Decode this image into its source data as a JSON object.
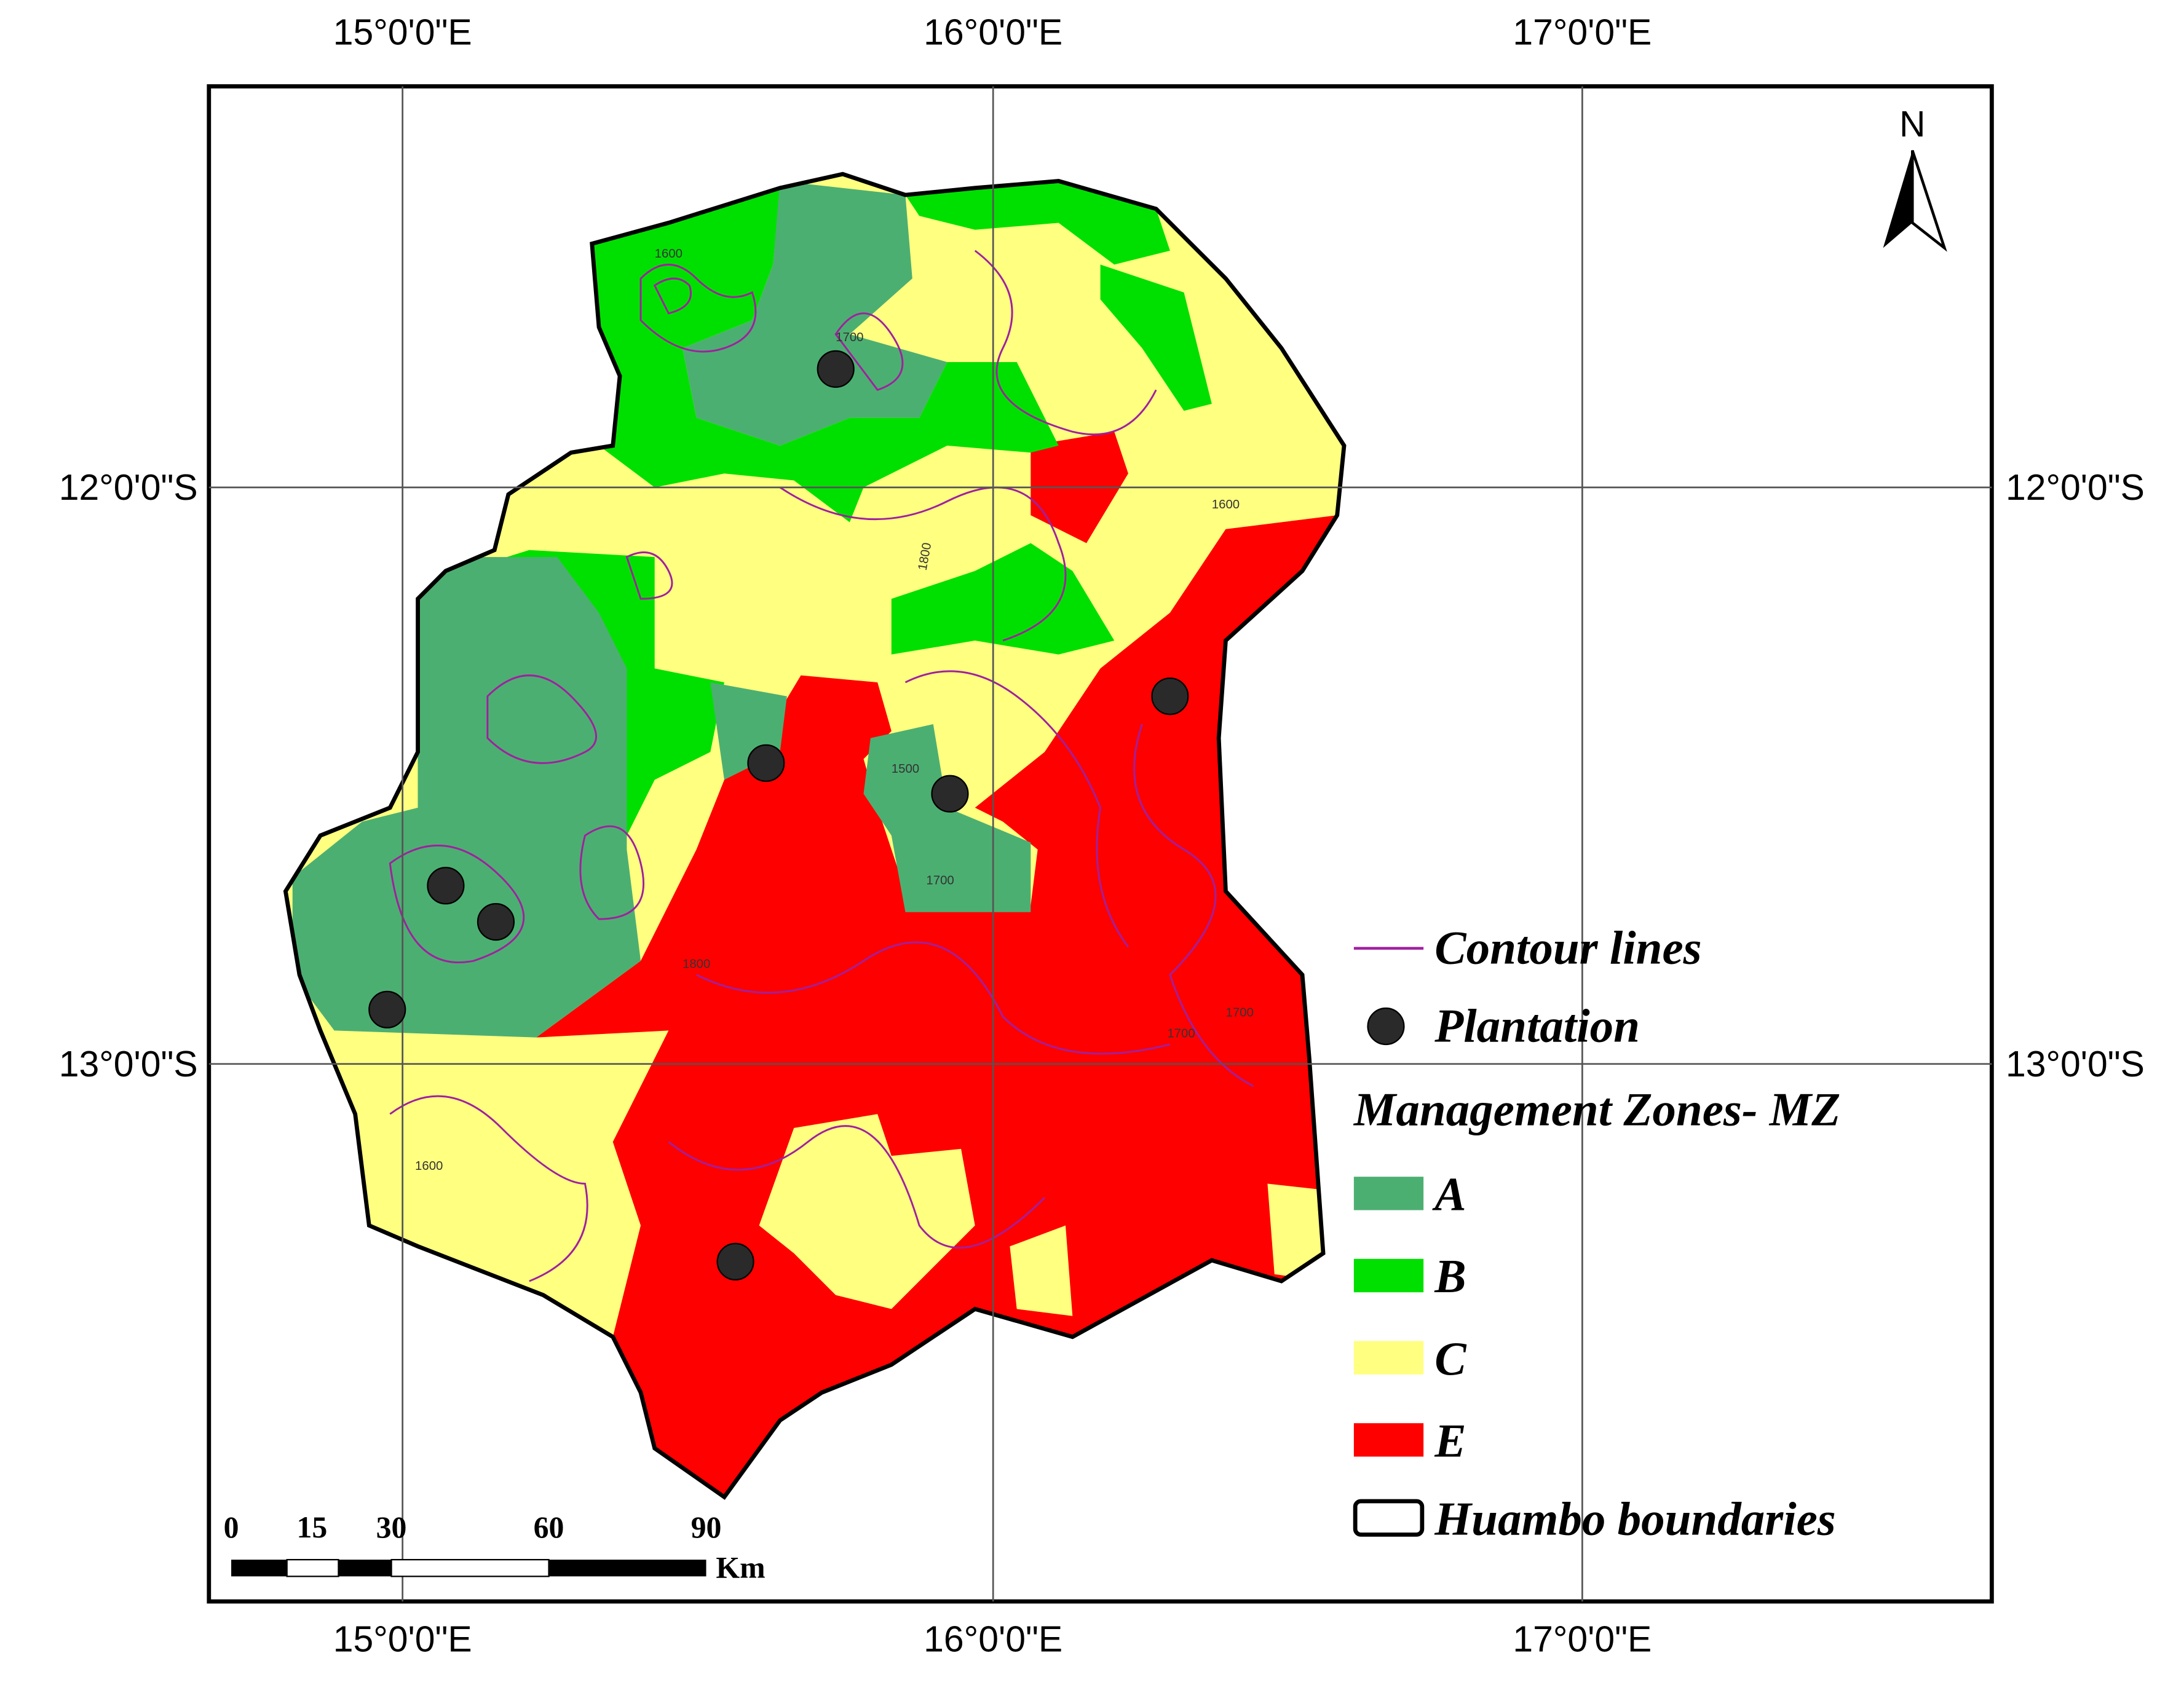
{
  "graticule": {
    "longitudes": [
      "15°0'0\"E",
      "16°0'0\"E",
      "17°0'0\"E"
    ],
    "latitudes": [
      "12°0'0\"S",
      "13°0'0\"S"
    ]
  },
  "north": "N",
  "legend": {
    "contour": "Contour lines",
    "plantation": "Plantation",
    "zones_title": "Management Zones- MZ",
    "zones": [
      {
        "label": "A",
        "color": "#4caf72"
      },
      {
        "label": "B",
        "color": "#00e000"
      },
      {
        "label": "C",
        "color": "#ffff80"
      },
      {
        "label": "E",
        "color": "#ff0000"
      }
    ],
    "boundary": "Huambo boundaries"
  },
  "scale_bar": {
    "labels": [
      "0",
      "15",
      "30",
      "60",
      "90"
    ],
    "unit": "Km"
  },
  "contour_labels": [
    "1600",
    "1700",
    "1800",
    "1500",
    "1700",
    "1600",
    "1800",
    "1700",
    "1600",
    "1700"
  ]
}
